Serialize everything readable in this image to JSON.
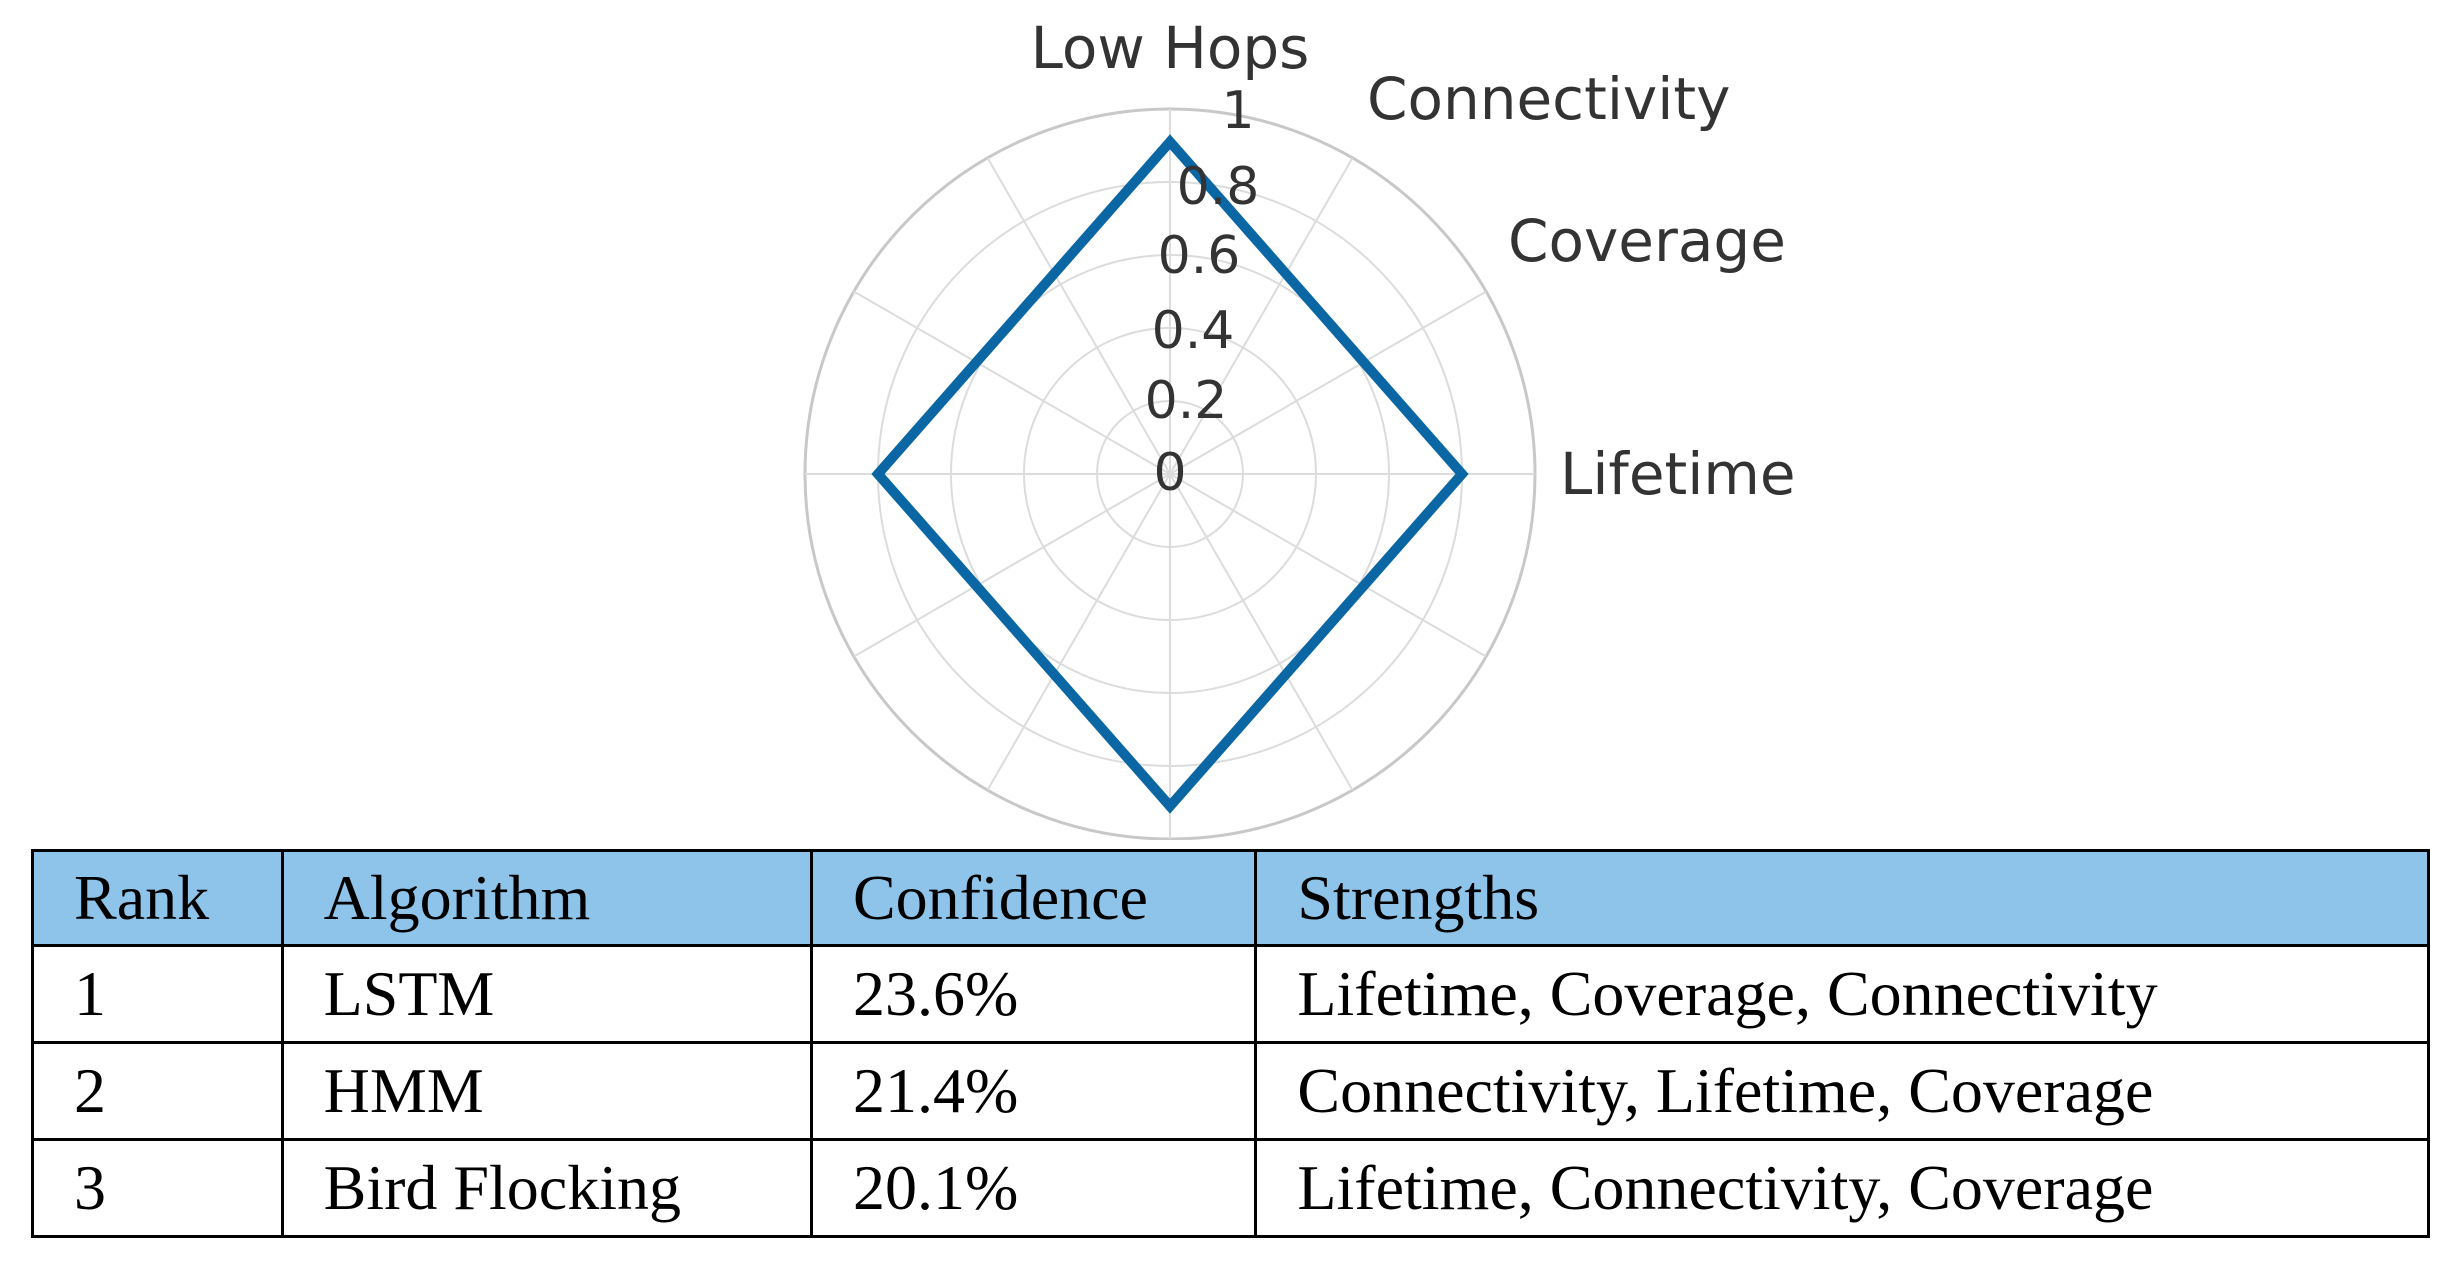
{
  "chart_data": {
    "type": "radar",
    "axes": [
      "Low Hops",
      "Connectivity",
      "Coverage",
      "Lifetime"
    ],
    "series": [
      {
        "color": "#0a67a3",
        "points": [
          {
            "angle_deg": 90,
            "r": 0.91
          },
          {
            "angle_deg": 0,
            "r": 0.8
          },
          {
            "angle_deg": 270,
            "r": 0.91
          },
          {
            "angle_deg": 180,
            "r": 0.8
          }
        ]
      }
    ],
    "rlim": [
      0,
      1
    ],
    "r_ticks": [
      "0",
      "0.2",
      "0.4",
      "0.6",
      "0.8",
      "1"
    ],
    "angular_grid_deg": 30,
    "grid": true
  },
  "table": {
    "headers": [
      "Rank",
      "Algorithm",
      "Confidence",
      "Strengths"
    ],
    "rows": [
      [
        "1",
        "LSTM",
        "23.6%",
        "Lifetime, Coverage, Connectivity"
      ],
      [
        "2",
        "HMM",
        "21.4%",
        "Connectivity, Lifetime, Coverage"
      ],
      [
        "3",
        "Bird Flocking",
        "20.1%",
        "Lifetime, Connectivity, Coverage"
      ]
    ],
    "header_color": "#8ec3ea"
  }
}
